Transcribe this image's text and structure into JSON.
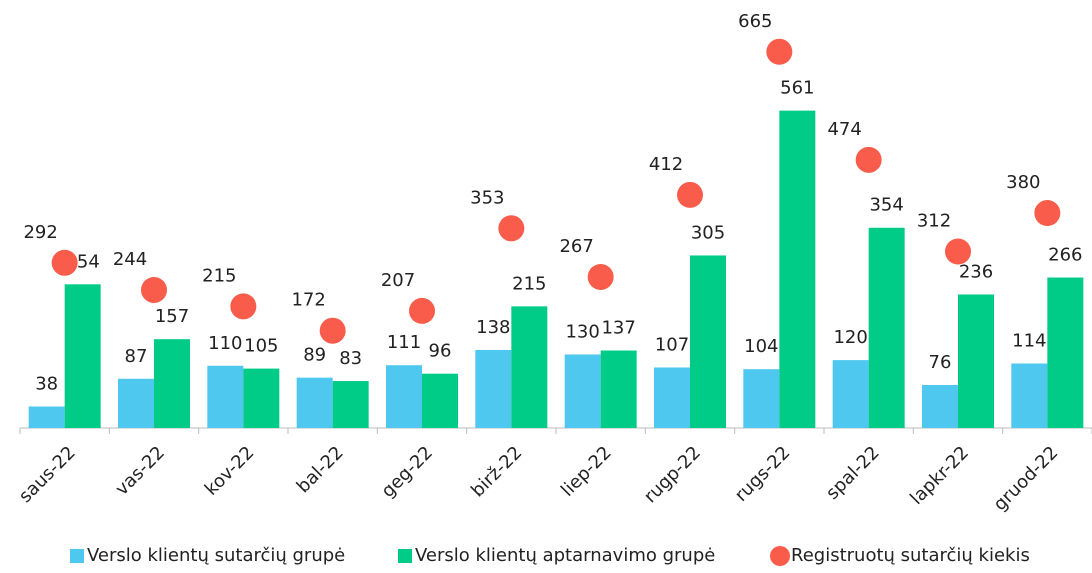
{
  "chart_data": {
    "type": "bar_dot",
    "categories": [
      "saus-22",
      "vas-22",
      "kov-22",
      "bal-22",
      "geg-22",
      "birž-22",
      "liep-22",
      "rugp-22",
      "rugs-22",
      "spal-22",
      "lapkr-22",
      "gruod-22"
    ],
    "series": [
      {
        "name": "Verslo klientų sutarčių grupė",
        "color": "#4fc8f0",
        "kind": "bar",
        "values": [
          38,
          87,
          110,
          89,
          111,
          138,
          130,
          107,
          104,
          120,
          76,
          114
        ]
      },
      {
        "name": "Verslo klientų aptarnavimo grupė",
        "color": "#00cc88",
        "kind": "bar",
        "values": [
          254,
          157,
          105,
          83,
          96,
          215,
          137,
          305,
          561,
          354,
          236,
          266
        ]
      },
      {
        "name": "Registruotų sutarčių kiekis",
        "color": "#f95c4a",
        "kind": "dot",
        "values": [
          292,
          244,
          215,
          172,
          207,
          353,
          267,
          412,
          665,
          474,
          312,
          380
        ]
      }
    ],
    "ylim": [
      0,
      700
    ]
  }
}
